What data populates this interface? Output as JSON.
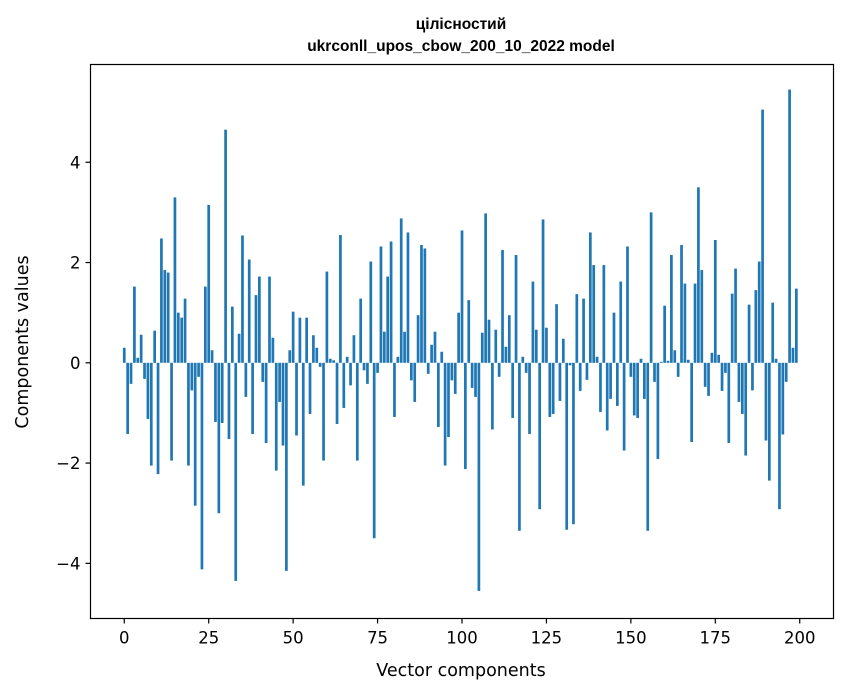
{
  "chart_data": {
    "type": "bar",
    "title": "цілісностий",
    "subtitle": "ukrconll_upos_cbow_200_10_2022 model",
    "xlabel": "Vector components",
    "ylabel": "Components values",
    "xlim": [
      -10,
      210
    ],
    "ylim": [
      -5.1,
      5.95
    ],
    "xticks": [
      0,
      25,
      50,
      75,
      100,
      125,
      150,
      175,
      200
    ],
    "yticks": [
      -4,
      -2,
      0,
      2,
      4
    ],
    "ytick_labels": [
      "−4",
      "−2",
      "0",
      "2",
      "4"
    ],
    "bar_color": "#1f77b4",
    "grid": false,
    "values": [
      0.3,
      -1.42,
      -0.42,
      1.52,
      0.1,
      0.56,
      -0.32,
      -1.12,
      -2.05,
      0.64,
      -2.22,
      2.48,
      1.85,
      1.8,
      -1.95,
      3.3,
      1.0,
      0.9,
      1.28,
      -2.05,
      -0.55,
      -2.85,
      -0.28,
      -4.12,
      1.52,
      3.15,
      0.25,
      -1.18,
      -3.0,
      -1.2,
      4.65,
      -1.52,
      1.12,
      -4.35,
      0.58,
      2.54,
      -0.68,
      2.06,
      -1.42,
      1.35,
      1.72,
      -0.38,
      -1.6,
      1.72,
      0.5,
      -2.15,
      -0.78,
      -1.65,
      -4.15,
      0.25,
      1.02,
      -1.45,
      0.9,
      -2.45,
      0.9,
      -1.02,
      0.55,
      0.3,
      -0.08,
      -1.95,
      1.82,
      0.08,
      0.05,
      -1.22,
      2.55,
      -0.9,
      0.12,
      -0.45,
      0.55,
      -1.95,
      1.28,
      -0.15,
      -0.42,
      2.02,
      -3.5,
      -0.2,
      2.32,
      0.62,
      1.72,
      2.42,
      -1.08,
      0.12,
      2.88,
      0.62,
      2.6,
      -0.35,
      -0.78,
      0.95,
      2.35,
      2.28,
      -0.22,
      0.36,
      0.62,
      -1.28,
      0.22,
      -2.05,
      -1.48,
      -0.35,
      -0.62,
      1.0,
      2.64,
      -2.12,
      1.25,
      -0.5,
      -0.68,
      -4.55,
      0.6,
      2.98,
      0.86,
      -1.33,
      0.66,
      -0.28,
      2.25,
      0.32,
      0.95,
      -1.1,
      2.15,
      -3.35,
      0.12,
      -0.2,
      -1.42,
      1.62,
      0.66,
      -2.92,
      2.86,
      0.7,
      -1.08,
      -1.02,
      1.17,
      -0.76,
      0.48,
      -3.33,
      -0.05,
      -3.22,
      1.37,
      -0.56,
      1.28,
      -0.34,
      2.6,
      1.95,
      0.12,
      -0.98,
      1.95,
      -1.35,
      -0.72,
      1.0,
      -0.86,
      1.62,
      -1.75,
      2.32,
      -0.28,
      -1.05,
      -1.1,
      0.08,
      -0.72,
      -3.35,
      3.0,
      -0.38,
      -1.92,
      0.02,
      1.14,
      0.04,
      2.15,
      0.25,
      -0.28,
      2.35,
      1.58,
      0.06,
      -1.58,
      1.58,
      3.5,
      1.85,
      -0.48,
      -0.66,
      0.2,
      2.45,
      0.16,
      -0.56,
      -0.2,
      -1.6,
      1.38,
      1.88,
      -0.78,
      -1.02,
      -1.85,
      1.16,
      -0.55,
      1.45,
      2.02,
      5.05,
      -1.55,
      -2.35,
      1.2,
      0.08,
      -2.92,
      -1.43,
      -0.38,
      5.45,
      0.3,
      1.48
    ]
  }
}
